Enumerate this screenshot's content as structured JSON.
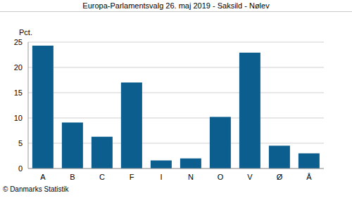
{
  "chart_data": {
    "type": "bar",
    "title": "Europa-Parlamentsvalg 26. maj 2019 - Saksild - Nølev",
    "y_label": "Pct.",
    "annotations": [
      "© Danmarks Statistik"
    ],
    "categories": [
      "A",
      "B",
      "C",
      "F",
      "I",
      "N",
      "O",
      "V",
      "Ø",
      "Å"
    ],
    "values": [
      24.3,
      9.1,
      6.3,
      17.0,
      1.6,
      2.0,
      10.2,
      22.9,
      4.5,
      3.0
    ],
    "color": "#0b5e8e",
    "ylim": [
      0,
      25
    ],
    "yticks": [
      0,
      5,
      10,
      15,
      20,
      25
    ],
    "grid": true
  }
}
